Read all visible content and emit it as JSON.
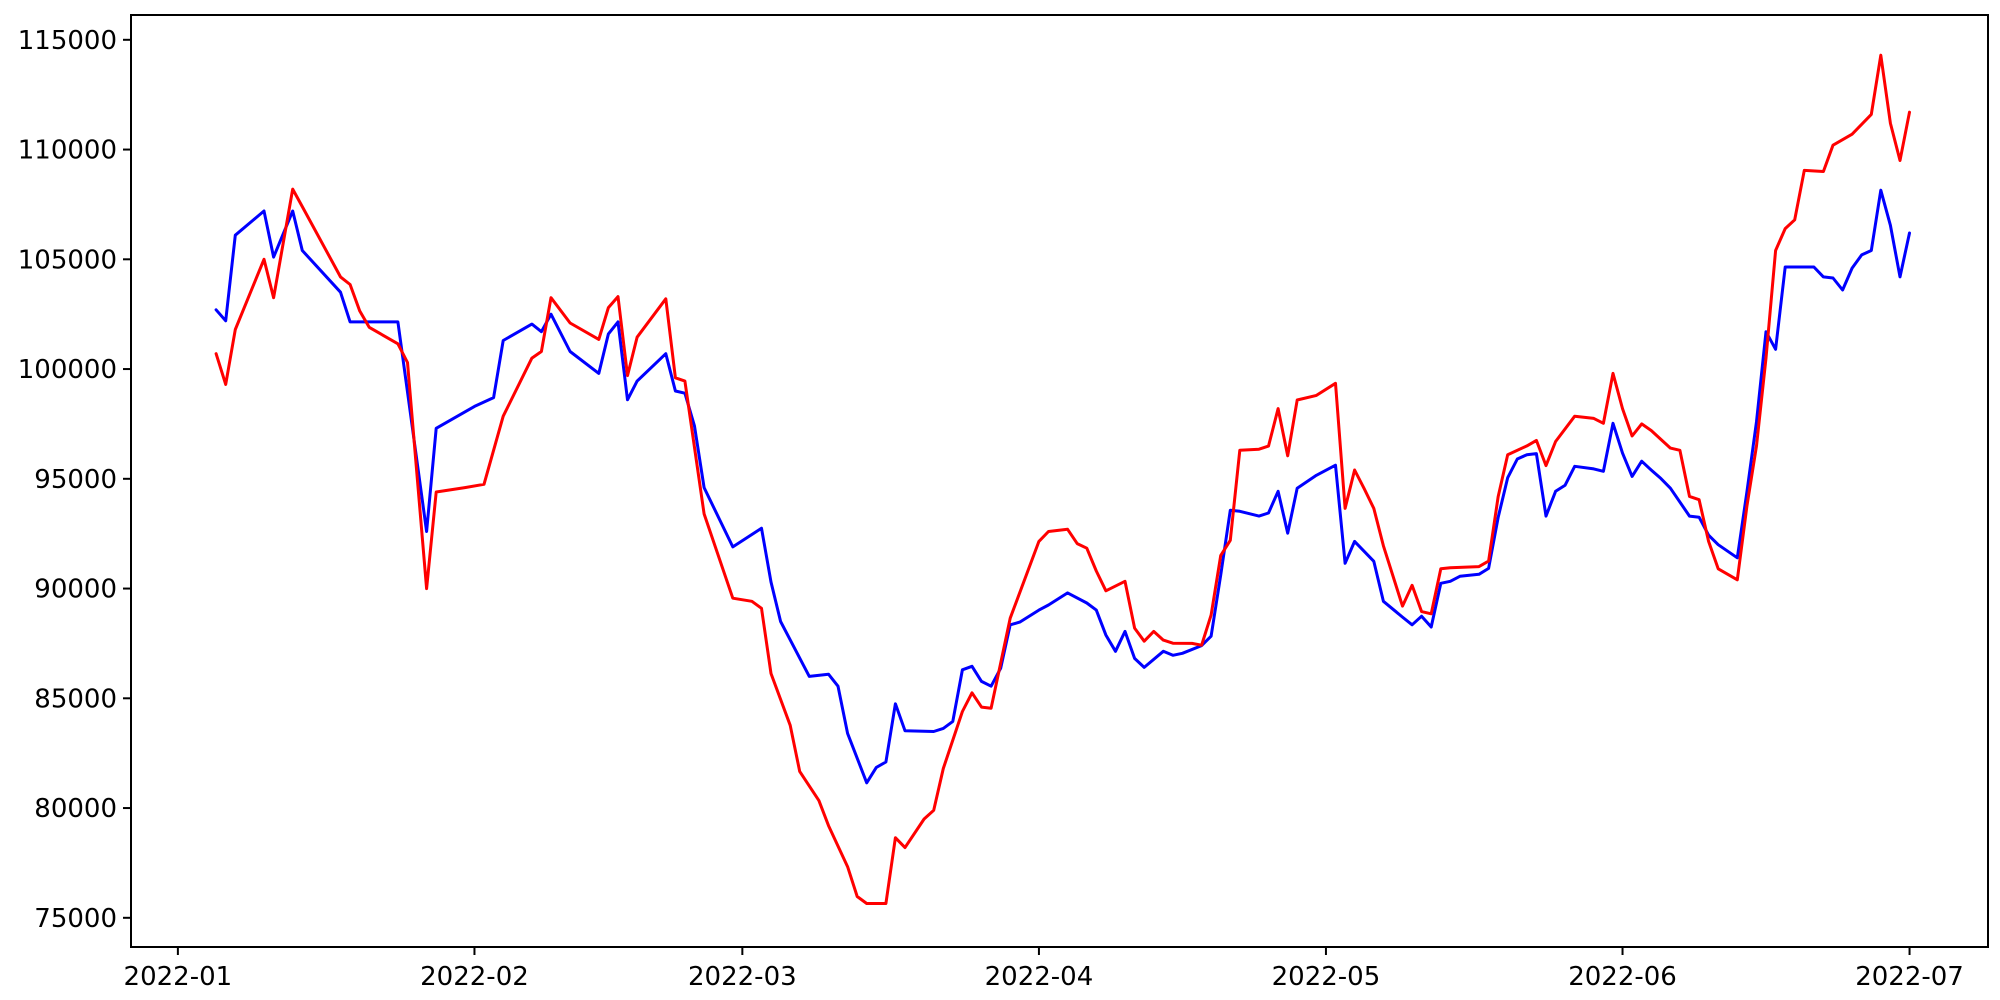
{
  "chart_data": {
    "type": "line",
    "title": "",
    "xlabel": "",
    "ylabel": "",
    "grid": false,
    "legend_position": "none",
    "background_color": "#ffffff",
    "axis_color": "#000000",
    "x_unit": "days since 2022-01-01",
    "xlim": [
      -4.9,
      189.2
    ],
    "ylim": [
      73670,
      116130
    ],
    "x_ticks": [
      {
        "day": 0,
        "label": "2022-01"
      },
      {
        "day": 31,
        "label": "2022-02"
      },
      {
        "day": 59,
        "label": "2022-03"
      },
      {
        "day": 90,
        "label": "2022-04"
      },
      {
        "day": 120,
        "label": "2022-05"
      },
      {
        "day": 151,
        "label": "2022-06"
      },
      {
        "day": 181,
        "label": "2022-07"
      }
    ],
    "y_ticks": [
      {
        "value": 75000,
        "label": "75000"
      },
      {
        "value": 80000,
        "label": "80000"
      },
      {
        "value": 85000,
        "label": "85000"
      },
      {
        "value": 90000,
        "label": "90000"
      },
      {
        "value": 95000,
        "label": "95000"
      },
      {
        "value": 100000,
        "label": "100000"
      },
      {
        "value": 105000,
        "label": "105000"
      },
      {
        "value": 110000,
        "label": "110000"
      },
      {
        "value": 115000,
        "label": "115000"
      }
    ],
    "series": [
      {
        "name": "blue-series",
        "color": "#0000ff",
        "line_width": 3,
        "points": [
          [
            4,
            102700
          ],
          [
            5,
            102200
          ],
          [
            6,
            106100
          ],
          [
            9,
            107200
          ],
          [
            10,
            105100
          ],
          [
            12,
            107200
          ],
          [
            13,
            105400
          ],
          [
            17,
            103500
          ],
          [
            18,
            102150
          ],
          [
            20,
            102150
          ],
          [
            23,
            102150
          ],
          [
            26,
            92600
          ],
          [
            27,
            97300
          ],
          [
            31,
            98300
          ],
          [
            33,
            98700
          ],
          [
            34,
            101300
          ],
          [
            37,
            102050
          ],
          [
            38,
            101700
          ],
          [
            39,
            102500
          ],
          [
            41,
            100800
          ],
          [
            44,
            99800
          ],
          [
            45,
            101600
          ],
          [
            46,
            102150
          ],
          [
            47,
            98600
          ],
          [
            48,
            99450
          ],
          [
            51,
            100700
          ],
          [
            52,
            99000
          ],
          [
            53,
            98900
          ],
          [
            54,
            97400
          ],
          [
            55,
            94600
          ],
          [
            58,
            91900
          ],
          [
            61,
            92750
          ],
          [
            62,
            90300
          ],
          [
            63,
            88500
          ],
          [
            66,
            86000
          ],
          [
            68,
            86100
          ],
          [
            69,
            85550
          ],
          [
            70,
            83400
          ],
          [
            72,
            81150
          ],
          [
            73,
            81850
          ],
          [
            74,
            82100
          ],
          [
            75,
            84750
          ],
          [
            76,
            83520
          ],
          [
            79,
            83490
          ],
          [
            80,
            83630
          ],
          [
            81,
            83950
          ],
          [
            82,
            86300
          ],
          [
            83,
            86460
          ],
          [
            84,
            85770
          ],
          [
            85,
            85550
          ],
          [
            86,
            86370
          ],
          [
            87,
            88350
          ],
          [
            88,
            88470
          ],
          [
            90,
            89020
          ],
          [
            91,
            89250
          ],
          [
            93,
            89800
          ],
          [
            95,
            89340
          ],
          [
            96,
            89020
          ],
          [
            97,
            87880
          ],
          [
            98,
            87140
          ],
          [
            99,
            88050
          ],
          [
            100,
            86820
          ],
          [
            101,
            86410
          ],
          [
            103,
            87140
          ],
          [
            104,
            86960
          ],
          [
            105,
            87050
          ],
          [
            107,
            87400
          ],
          [
            108,
            87830
          ],
          [
            109,
            90610
          ],
          [
            110,
            93570
          ],
          [
            111,
            93520
          ],
          [
            113,
            93300
          ],
          [
            114,
            93440
          ],
          [
            115,
            94430
          ],
          [
            116,
            92520
          ],
          [
            117,
            94570
          ],
          [
            119,
            95160
          ],
          [
            121,
            95620
          ],
          [
            122,
            91150
          ],
          [
            123,
            92150
          ],
          [
            125,
            91240
          ],
          [
            126,
            89420
          ],
          [
            128,
            88700
          ],
          [
            129,
            88350
          ],
          [
            130,
            88740
          ],
          [
            131,
            88250
          ],
          [
            132,
            90240
          ],
          [
            133,
            90330
          ],
          [
            134,
            90560
          ],
          [
            136,
            90650
          ],
          [
            137,
            90920
          ],
          [
            138,
            93250
          ],
          [
            139,
            95050
          ],
          [
            140,
            95900
          ],
          [
            141,
            96100
          ],
          [
            142,
            96150
          ],
          [
            143,
            93300
          ],
          [
            144,
            94430
          ],
          [
            145,
            94710
          ],
          [
            146,
            95570
          ],
          [
            148,
            95450
          ],
          [
            149,
            95340
          ],
          [
            150,
            97530
          ],
          [
            151,
            96170
          ],
          [
            152,
            95110
          ],
          [
            153,
            95800
          ],
          [
            154,
            95400
          ],
          [
            155,
            95020
          ],
          [
            156,
            94570
          ],
          [
            158,
            93300
          ],
          [
            159,
            93250
          ],
          [
            160,
            92430
          ],
          [
            161,
            92000
          ],
          [
            163,
            91400
          ],
          [
            164,
            94400
          ],
          [
            165,
            97600
          ],
          [
            166,
            101700
          ],
          [
            167,
            100900
          ],
          [
            168,
            104650
          ],
          [
            171,
            104650
          ],
          [
            172,
            104200
          ],
          [
            173,
            104150
          ],
          [
            174,
            103600
          ],
          [
            175,
            104600
          ],
          [
            176,
            105200
          ],
          [
            177,
            105400
          ],
          [
            178,
            108150
          ],
          [
            179,
            106550
          ],
          [
            180,
            104200
          ],
          [
            181,
            106200
          ]
        ]
      },
      {
        "name": "red-series",
        "color": "#ff0000",
        "line_width": 3,
        "points": [
          [
            4,
            100700
          ],
          [
            5,
            99300
          ],
          [
            6,
            101800
          ],
          [
            9,
            105000
          ],
          [
            10,
            103250
          ],
          [
            12,
            108200
          ],
          [
            13,
            107400
          ],
          [
            17,
            104200
          ],
          [
            18,
            103850
          ],
          [
            19,
            102650
          ],
          [
            20,
            101900
          ],
          [
            23,
            101150
          ],
          [
            24,
            100300
          ],
          [
            26,
            90000
          ],
          [
            27,
            94400
          ],
          [
            30,
            94600
          ],
          [
            32,
            94750
          ],
          [
            34,
            97850
          ],
          [
            37,
            100500
          ],
          [
            38,
            100800
          ],
          [
            39,
            103250
          ],
          [
            41,
            102100
          ],
          [
            44,
            101350
          ],
          [
            45,
            102800
          ],
          [
            46,
            103300
          ],
          [
            47,
            99700
          ],
          [
            48,
            101450
          ],
          [
            51,
            103200
          ],
          [
            52,
            99600
          ],
          [
            53,
            99450
          ],
          [
            55,
            93400
          ],
          [
            58,
            89560
          ],
          [
            60,
            89420
          ],
          [
            61,
            89100
          ],
          [
            62,
            86130
          ],
          [
            64,
            83770
          ],
          [
            65,
            81670
          ],
          [
            67,
            80340
          ],
          [
            68,
            79200
          ],
          [
            70,
            77330
          ],
          [
            71,
            75970
          ],
          [
            72,
            75650
          ],
          [
            74,
            75650
          ],
          [
            75,
            78650
          ],
          [
            76,
            78200
          ],
          [
            78,
            79500
          ],
          [
            79,
            79900
          ],
          [
            80,
            81800
          ],
          [
            82,
            84400
          ],
          [
            83,
            85250
          ],
          [
            84,
            84600
          ],
          [
            85,
            84550
          ],
          [
            87,
            88650
          ],
          [
            90,
            92150
          ],
          [
            91,
            92600
          ],
          [
            93,
            92700
          ],
          [
            94,
            92050
          ],
          [
            95,
            91840
          ],
          [
            96,
            90800
          ],
          [
            97,
            89900
          ],
          [
            99,
            90330
          ],
          [
            100,
            88200
          ],
          [
            101,
            87600
          ],
          [
            102,
            88050
          ],
          [
            103,
            87650
          ],
          [
            104,
            87510
          ],
          [
            106,
            87500
          ],
          [
            107,
            87420
          ],
          [
            108,
            88790
          ],
          [
            109,
            91500
          ],
          [
            110,
            92200
          ],
          [
            111,
            96300
          ],
          [
            113,
            96350
          ],
          [
            114,
            96490
          ],
          [
            115,
            98200
          ],
          [
            116,
            96050
          ],
          [
            117,
            98590
          ],
          [
            119,
            98800
          ],
          [
            121,
            99350
          ],
          [
            122,
            93650
          ],
          [
            123,
            95400
          ],
          [
            124,
            94550
          ],
          [
            125,
            93650
          ],
          [
            126,
            91950
          ],
          [
            128,
            89200
          ],
          [
            129,
            90150
          ],
          [
            130,
            88950
          ],
          [
            131,
            88850
          ],
          [
            132,
            90900
          ],
          [
            133,
            90950
          ],
          [
            136,
            91000
          ],
          [
            137,
            91250
          ],
          [
            138,
            94200
          ],
          [
            139,
            96100
          ],
          [
            141,
            96500
          ],
          [
            142,
            96750
          ],
          [
            143,
            95600
          ],
          [
            144,
            96700
          ],
          [
            146,
            97850
          ],
          [
            148,
            97750
          ],
          [
            149,
            97530
          ],
          [
            150,
            99800
          ],
          [
            151,
            98200
          ],
          [
            152,
            96950
          ],
          [
            153,
            97500
          ],
          [
            154,
            97200
          ],
          [
            156,
            96400
          ],
          [
            157,
            96300
          ],
          [
            158,
            94200
          ],
          [
            159,
            94050
          ],
          [
            160,
            92150
          ],
          [
            161,
            90900
          ],
          [
            163,
            90400
          ],
          [
            164,
            93750
          ],
          [
            165,
            96500
          ],
          [
            166,
            100500
          ],
          [
            167,
            105400
          ],
          [
            168,
            106400
          ],
          [
            169,
            106800
          ],
          [
            170,
            109050
          ],
          [
            172,
            109000
          ],
          [
            173,
            110200
          ],
          [
            175,
            110700
          ],
          [
            177,
            111600
          ],
          [
            178,
            114300
          ],
          [
            179,
            111200
          ],
          [
            180,
            109500
          ],
          [
            181,
            111700
          ]
        ]
      }
    ]
  }
}
